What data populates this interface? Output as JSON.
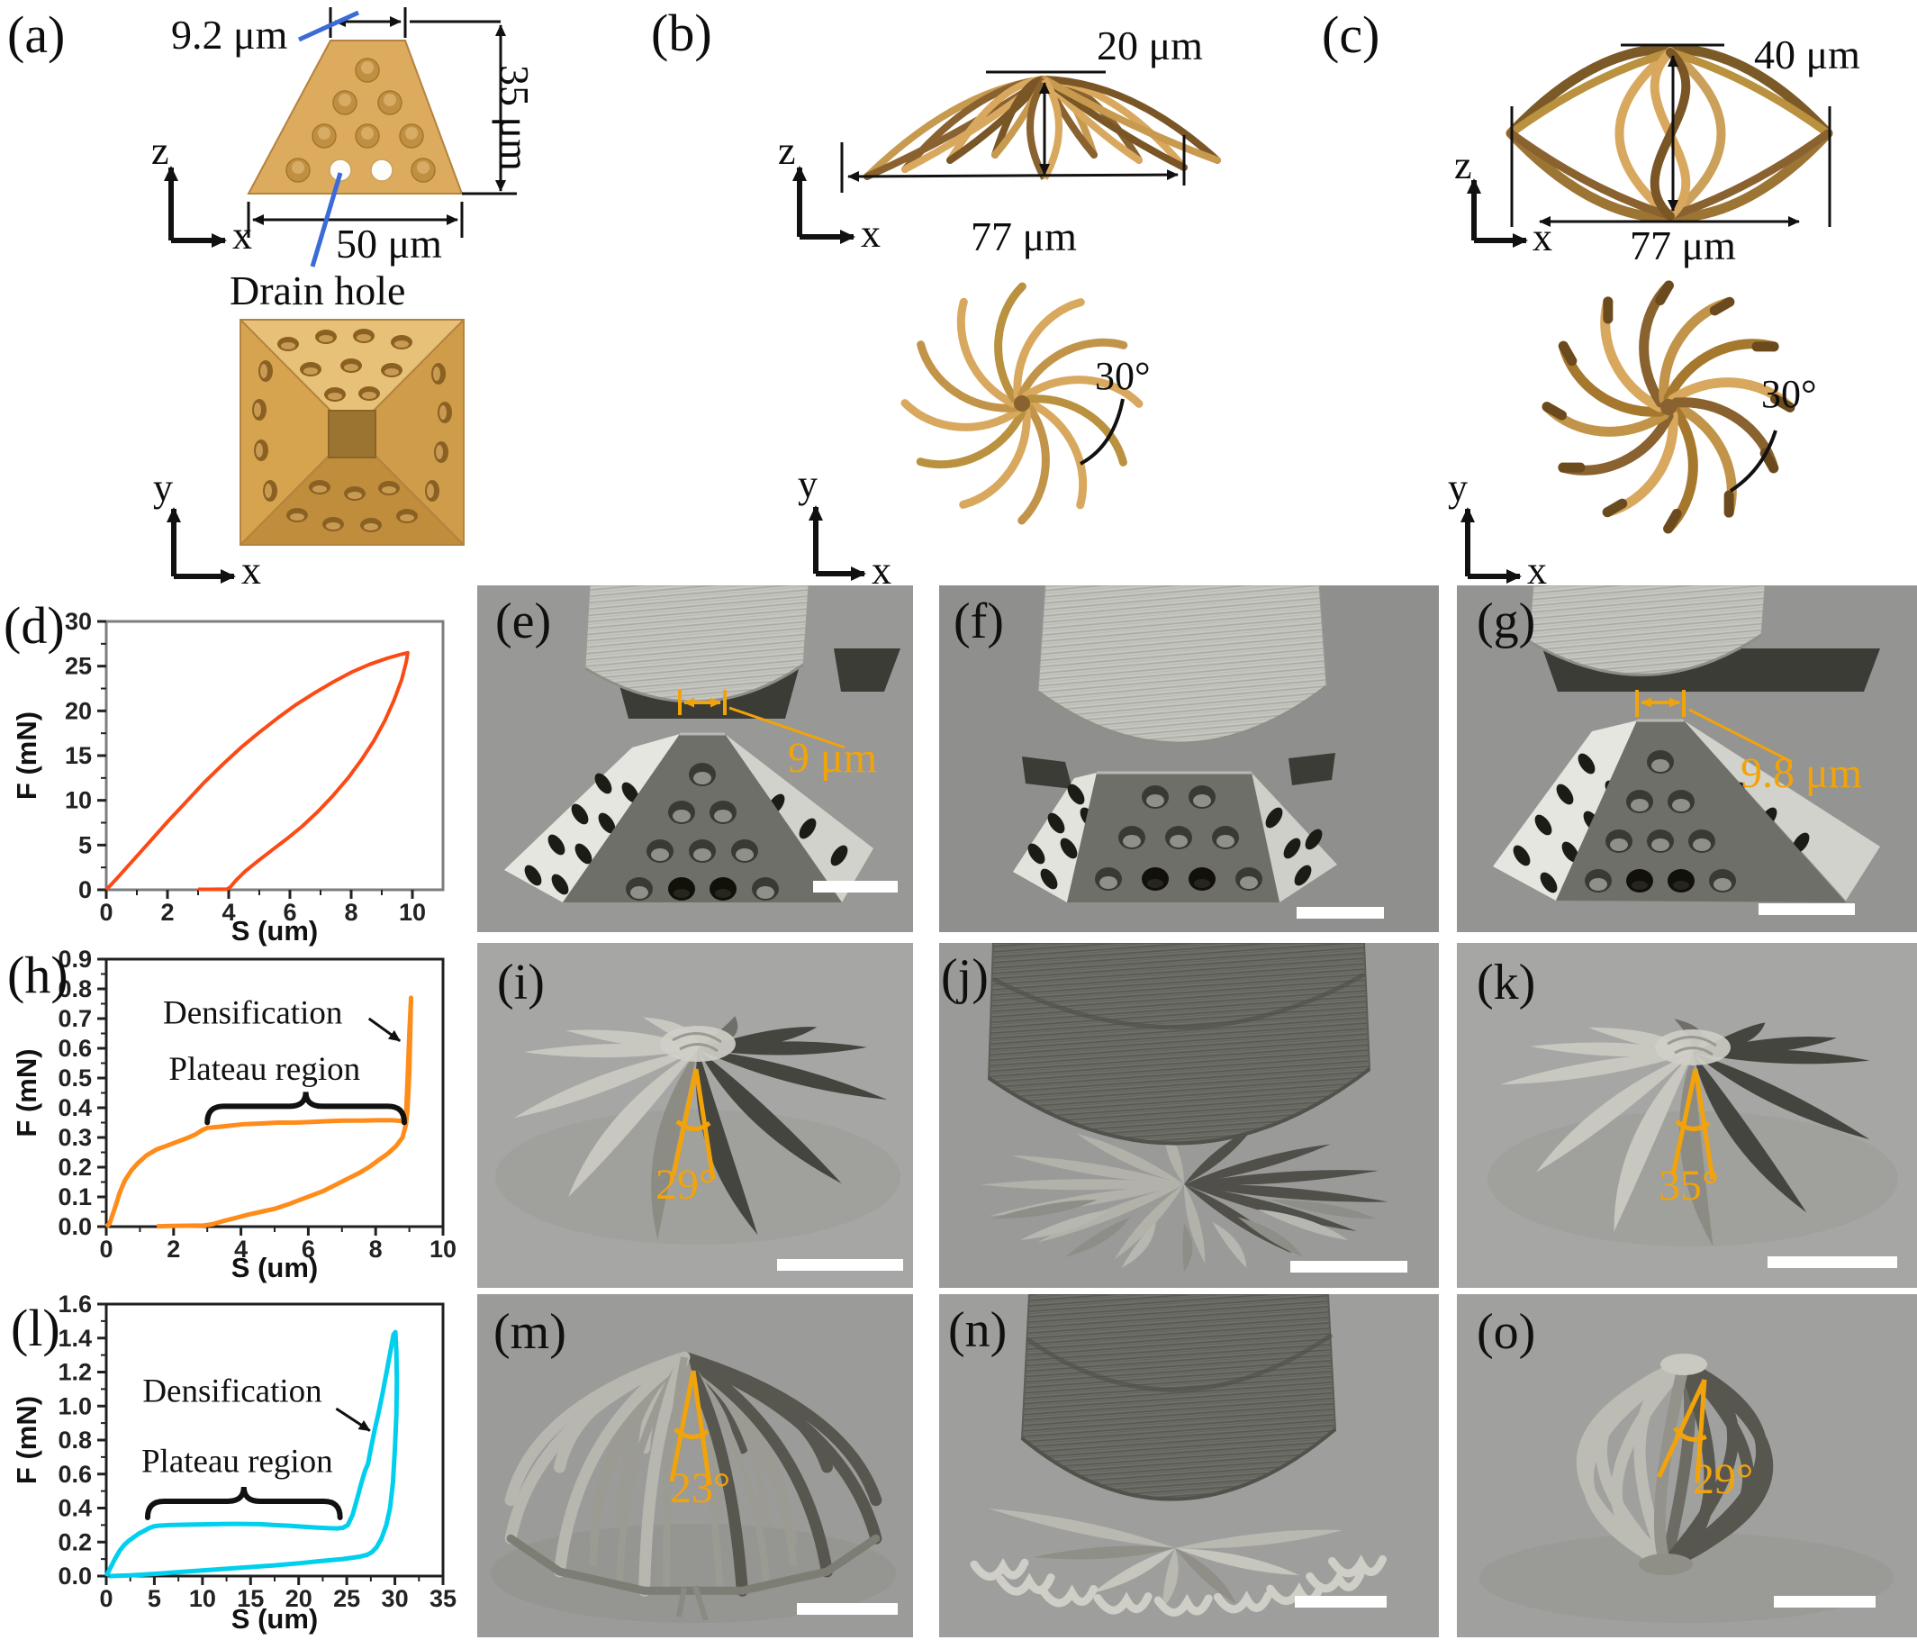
{
  "colors": {
    "gold": "#d9a85f",
    "gold_dark": "#8a6230",
    "gold_mid": "#c2944a",
    "gold_deep": "#7a5626",
    "blue_leader": "#3a6bd6",
    "sem_annotation": "#f2a30a",
    "chart_d_curve": "#fb4a14",
    "chart_h_curve": "#ff8c1a",
    "chart_l_curve": "#00cfee"
  },
  "panel_a": {
    "label": "(a)",
    "dims": {
      "top": "9.2 μm",
      "height": "35 μm",
      "base": "50 μm"
    },
    "drain": "Drain hole",
    "axes": {
      "z": "z",
      "x": "x",
      "y": "y"
    }
  },
  "panel_b": {
    "label": "(b)",
    "dims": {
      "height": "20 μm",
      "width": "77 μm"
    },
    "angle": "30°",
    "axes": {
      "z": "z",
      "x": "x",
      "y": "y"
    }
  },
  "panel_c": {
    "label": "(c)",
    "dims": {
      "height": "40 μm",
      "width": "77 μm"
    },
    "angle": "30°",
    "axes": {
      "z": "z",
      "x": "x",
      "y": "y"
    }
  },
  "sem_panels": {
    "e": {
      "label": "(e)",
      "annotation": "9 μm"
    },
    "f": {
      "label": "(f)"
    },
    "g": {
      "label": "(g)",
      "annotation": "9.8 μm"
    },
    "i": {
      "label": "(i)",
      "angle": "29°"
    },
    "j": {
      "label": "(j)"
    },
    "k": {
      "label": "(k)",
      "angle": "35°"
    },
    "m": {
      "label": "(m)",
      "angle": "23°"
    },
    "n": {
      "label": "(n)"
    },
    "o": {
      "label": "(o)",
      "angle": "29°"
    }
  },
  "chart_data": [
    {
      "id": "d",
      "panel_label": "(d)",
      "type": "line",
      "title": "",
      "xlabel": "S (um)",
      "ylabel": "F (mN)",
      "xlim": [
        0,
        11
      ],
      "ylim": [
        0,
        30
      ],
      "xticks": [
        0,
        2,
        4,
        6,
        8,
        10
      ],
      "yticks": [
        0,
        5,
        10,
        15,
        20,
        25,
        30
      ],
      "ytick_decimals": 0,
      "grid": false,
      "legend": null,
      "frame_color": "#7d7d7d",
      "color": "#fb4a14",
      "series": [
        {
          "name": "load-unload hysteresis loop",
          "points": [
            [
              0,
              0
            ],
            [
              0.3,
              1.1
            ],
            [
              0.8,
              3.0
            ],
            [
              1.4,
              5.3
            ],
            [
              2,
              7.6
            ],
            [
              2.6,
              9.8
            ],
            [
              3.2,
              12
            ],
            [
              3.8,
              14
            ],
            [
              4.4,
              15.9
            ],
            [
              5,
              17.6
            ],
            [
              5.6,
              19.2
            ],
            [
              6.2,
              20.7
            ],
            [
              6.8,
              22
            ],
            [
              7.4,
              23.2
            ],
            [
              8,
              24.3
            ],
            [
              8.6,
              25.2
            ],
            [
              9.2,
              25.9
            ],
            [
              9.6,
              26.3
            ],
            [
              9.85,
              26.5
            ],
            [
              9.8,
              25.5
            ],
            [
              9.65,
              23.5
            ],
            [
              9.4,
              21.2
            ],
            [
              9.1,
              18.9
            ],
            [
              8.75,
              16.7
            ],
            [
              8.35,
              14.6
            ],
            [
              7.9,
              12.5
            ],
            [
              7.4,
              10.5
            ],
            [
              6.9,
              8.7
            ],
            [
              6.4,
              7.1
            ],
            [
              5.9,
              5.7
            ],
            [
              5.4,
              4.4
            ],
            [
              4.95,
              3.2
            ],
            [
              4.55,
              2.1
            ],
            [
              4.25,
              1.1
            ],
            [
              4.05,
              0.3
            ],
            [
              3.95,
              0.08
            ],
            [
              3.4,
              0.05
            ],
            [
              3.0,
              0.05
            ]
          ]
        }
      ],
      "annotations": []
    },
    {
      "id": "h",
      "panel_label": "(h)",
      "type": "line",
      "title": "",
      "xlabel": "S (um)",
      "ylabel": "F (mN)",
      "xlim": [
        0,
        10
      ],
      "ylim": [
        0,
        0.9
      ],
      "xticks": [
        0,
        2,
        4,
        6,
        8,
        10
      ],
      "yticks": [
        0,
        0.1,
        0.2,
        0.3,
        0.4,
        0.5,
        0.6,
        0.7,
        0.8,
        0.9
      ],
      "ytick_decimals": 1,
      "grid": false,
      "legend": null,
      "frame_color": "#1f1f1f",
      "color": "#ff8c1a",
      "series": [
        {
          "name": "load-unload loop with plateau and densification",
          "points": [
            [
              0,
              0
            ],
            [
              0.1,
              0.01
            ],
            [
              0.25,
              0.06
            ],
            [
              0.4,
              0.115
            ],
            [
              0.55,
              0.155
            ],
            [
              0.75,
              0.19
            ],
            [
              0.95,
              0.215
            ],
            [
              1.2,
              0.24
            ],
            [
              1.5,
              0.26
            ],
            [
              1.8,
              0.272
            ],
            [
              2.1,
              0.285
            ],
            [
              2.4,
              0.298
            ],
            [
              2.65,
              0.31
            ],
            [
              2.85,
              0.325
            ],
            [
              3.0,
              0.332
            ],
            [
              3.3,
              0.335
            ],
            [
              3.7,
              0.34
            ],
            [
              4.1,
              0.345
            ],
            [
              4.6,
              0.347
            ],
            [
              5.1,
              0.35
            ],
            [
              5.6,
              0.35
            ],
            [
              6.1,
              0.352
            ],
            [
              6.6,
              0.355
            ],
            [
              7.1,
              0.357
            ],
            [
              7.6,
              0.357
            ],
            [
              8.1,
              0.358
            ],
            [
              8.5,
              0.358
            ],
            [
              8.8,
              0.355
            ],
            [
              8.9,
              0.37
            ],
            [
              8.95,
              0.5
            ],
            [
              9.0,
              0.65
            ],
            [
              9.05,
              0.77
            ],
            [
              9.0,
              0.52
            ],
            [
              8.95,
              0.4
            ],
            [
              8.9,
              0.345
            ],
            [
              8.8,
              0.3
            ],
            [
              8.6,
              0.27
            ],
            [
              8.35,
              0.245
            ],
            [
              8.1,
              0.225
            ],
            [
              7.8,
              0.2
            ],
            [
              7.5,
              0.18
            ],
            [
              7.15,
              0.16
            ],
            [
              6.8,
              0.14
            ],
            [
              6.45,
              0.12
            ],
            [
              6.1,
              0.105
            ],
            [
              5.75,
              0.09
            ],
            [
              5.4,
              0.075
            ],
            [
              5.0,
              0.06
            ],
            [
              4.6,
              0.05
            ],
            [
              4.2,
              0.04
            ],
            [
              3.8,
              0.028
            ],
            [
              3.45,
              0.018
            ],
            [
              3.15,
              0.008
            ],
            [
              2.9,
              0.004
            ],
            [
              2.4,
              0.003
            ],
            [
              1.9,
              0.002
            ],
            [
              1.5,
              0.001
            ]
          ]
        }
      ],
      "annotations": [
        {
          "type": "label_arrow",
          "text": "Densification",
          "label": [
            4.35,
            0.72
          ],
          "from": [
            7.8,
            0.7
          ],
          "to": [
            8.72,
            0.625
          ]
        },
        {
          "type": "brace",
          "text": "Plateau region",
          "x1": 3.0,
          "x2": 8.85,
          "y": 0.405,
          "label": [
            4.7,
            0.53
          ]
        }
      ]
    },
    {
      "id": "l",
      "panel_label": "(l)",
      "type": "line",
      "title": "",
      "xlabel": "S (um)",
      "ylabel": "F (mN)",
      "xlim": [
        0,
        35
      ],
      "ylim": [
        0,
        1.6
      ],
      "xticks": [
        0,
        5,
        10,
        15,
        20,
        25,
        30,
        35
      ],
      "yticks": [
        0,
        0.2,
        0.4,
        0.6,
        0.8,
        1.0,
        1.2,
        1.4,
        1.6
      ],
      "ytick_decimals": 1,
      "grid": false,
      "legend": null,
      "frame_color": "#1f1f1f",
      "color": "#00cfee",
      "series": [
        {
          "name": "load-unload loop with plateau and densification",
          "points": [
            [
              0,
              0
            ],
            [
              0.4,
              0.045
            ],
            [
              0.9,
              0.1
            ],
            [
              1.4,
              0.15
            ],
            [
              1.9,
              0.185
            ],
            [
              2.4,
              0.21
            ],
            [
              2.9,
              0.23
            ],
            [
              3.4,
              0.25
            ],
            [
              3.9,
              0.265
            ],
            [
              4.4,
              0.28
            ],
            [
              4.9,
              0.292
            ],
            [
              5.4,
              0.296
            ],
            [
              6.5,
              0.3
            ],
            [
              8,
              0.302
            ],
            [
              10,
              0.304
            ],
            [
              12,
              0.306
            ],
            [
              14,
              0.307
            ],
            [
              16,
              0.305
            ],
            [
              17.5,
              0.3
            ],
            [
              19,
              0.296
            ],
            [
              20.5,
              0.29
            ],
            [
              22,
              0.285
            ],
            [
              23,
              0.282
            ],
            [
              24,
              0.28
            ],
            [
              24.6,
              0.284
            ],
            [
              25.1,
              0.3
            ],
            [
              25.6,
              0.36
            ],
            [
              26.1,
              0.46
            ],
            [
              26.5,
              0.545
            ],
            [
              26.9,
              0.62
            ],
            [
              27.2,
              0.66
            ],
            [
              27.5,
              0.75
            ],
            [
              27.9,
              0.86
            ],
            [
              28.3,
              0.96
            ],
            [
              28.7,
              1.07
            ],
            [
              29.1,
              1.19
            ],
            [
              29.5,
              1.31
            ],
            [
              29.85,
              1.42
            ],
            [
              30.05,
              1.435
            ],
            [
              30.15,
              1.32
            ],
            [
              30.2,
              1.15
            ],
            [
              30.15,
              0.95
            ],
            [
              30.0,
              0.75
            ],
            [
              29.8,
              0.55
            ],
            [
              29.5,
              0.4
            ],
            [
              29.1,
              0.3
            ],
            [
              28.6,
              0.22
            ],
            [
              28.1,
              0.17
            ],
            [
              27.6,
              0.14
            ],
            [
              27.1,
              0.125
            ],
            [
              26.4,
              0.115
            ],
            [
              25.6,
              0.108
            ],
            [
              24.6,
              0.1
            ],
            [
              23.4,
              0.094
            ],
            [
              22,
              0.087
            ],
            [
              20.5,
              0.078
            ],
            [
              19,
              0.07
            ],
            [
              17.5,
              0.063
            ],
            [
              16,
              0.057
            ],
            [
              14.5,
              0.051
            ],
            [
              13,
              0.045
            ],
            [
              11.5,
              0.039
            ],
            [
              10,
              0.033
            ],
            [
              8.5,
              0.027
            ],
            [
              7,
              0.021
            ],
            [
              5.5,
              0.015
            ],
            [
              4,
              0.009
            ],
            [
              2.5,
              0.004
            ],
            [
              1,
              0.001
            ],
            [
              0.3,
              0
            ]
          ]
        }
      ],
      "annotations": [
        {
          "type": "label_arrow",
          "text": "Densification",
          "label": [
            13.1,
            1.09
          ],
          "from": [
            23.9,
            0.985
          ],
          "to": [
            27.4,
            0.855
          ]
        },
        {
          "type": "brace",
          "text": "Plateau region",
          "x1": 4.3,
          "x2": 24.3,
          "y": 0.44,
          "label": [
            13.6,
            0.675
          ]
        }
      ]
    }
  ]
}
